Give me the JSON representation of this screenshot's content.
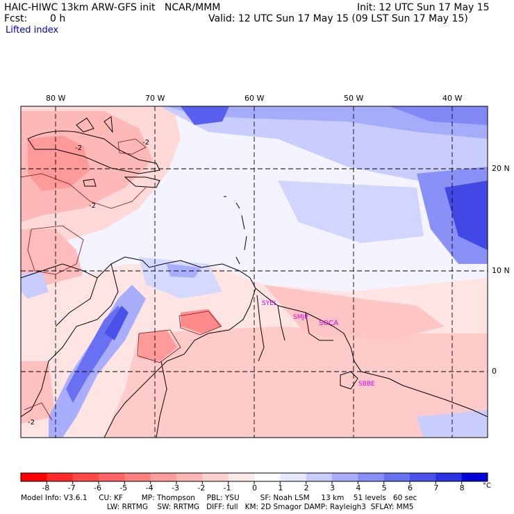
{
  "header": {
    "title_left": "HAIC-HIWC 13km ARW-GFS init   NCAR/MMM",
    "init": "Init: 12 UTC Sun 17 May 15",
    "fcst_label": "Fcst:",
    "fcst_value": "0 h",
    "valid": "Valid: 12 UTC Sun 17 May 15 (09 LST Sun 17 May 15)",
    "field": "Lifted index"
  },
  "map": {
    "lon_labels": [
      "80 W",
      "70 W",
      "60 W",
      "50 W",
      "40 W"
    ],
    "lat_labels": [
      "20 N",
      "10 N",
      "0"
    ],
    "contour_labels": [
      "-2",
      "-2",
      "-2",
      "-2"
    ],
    "stations": [
      "SYEL",
      "SMJP",
      "SOCA",
      "SBBE"
    ],
    "colors": {
      "negative": "#ff3a3a",
      "neutral": "#ffffff",
      "positive": "#0000e0"
    }
  },
  "colorbar": {
    "labels": [
      "-8",
      "-7",
      "-6",
      "-5",
      "-4",
      "-3",
      "-2",
      "-1",
      "0",
      "1",
      "2",
      "3",
      "4",
      "5",
      "6",
      "7",
      "8"
    ],
    "unit": "°C",
    "colors": [
      "#ff0000",
      "#ff2a2a",
      "#ff4848",
      "#ff6464",
      "#ff8080",
      "#ff9c9c",
      "#ffb6b6",
      "#ffd0d0",
      "#ffeaea",
      "#ffffff",
      "#e6e8ff",
      "#c8ccff",
      "#a8aefc",
      "#888ff8",
      "#6a70f2",
      "#4a52ea",
      "#2a32e2",
      "#0000d8"
    ]
  },
  "footer": {
    "line1": "Model Info: V3.6.1     CU: KF        MP: Thompson     PBL: YSU         SF: Noah LSM     13 km    51 levels   60 sec",
    "line2": "LW: RRTMG    SW: RRTMG   DIFF: full   KM: 2D Smagor DAMP: Rayleigh3  SFLAY: MM5"
  }
}
